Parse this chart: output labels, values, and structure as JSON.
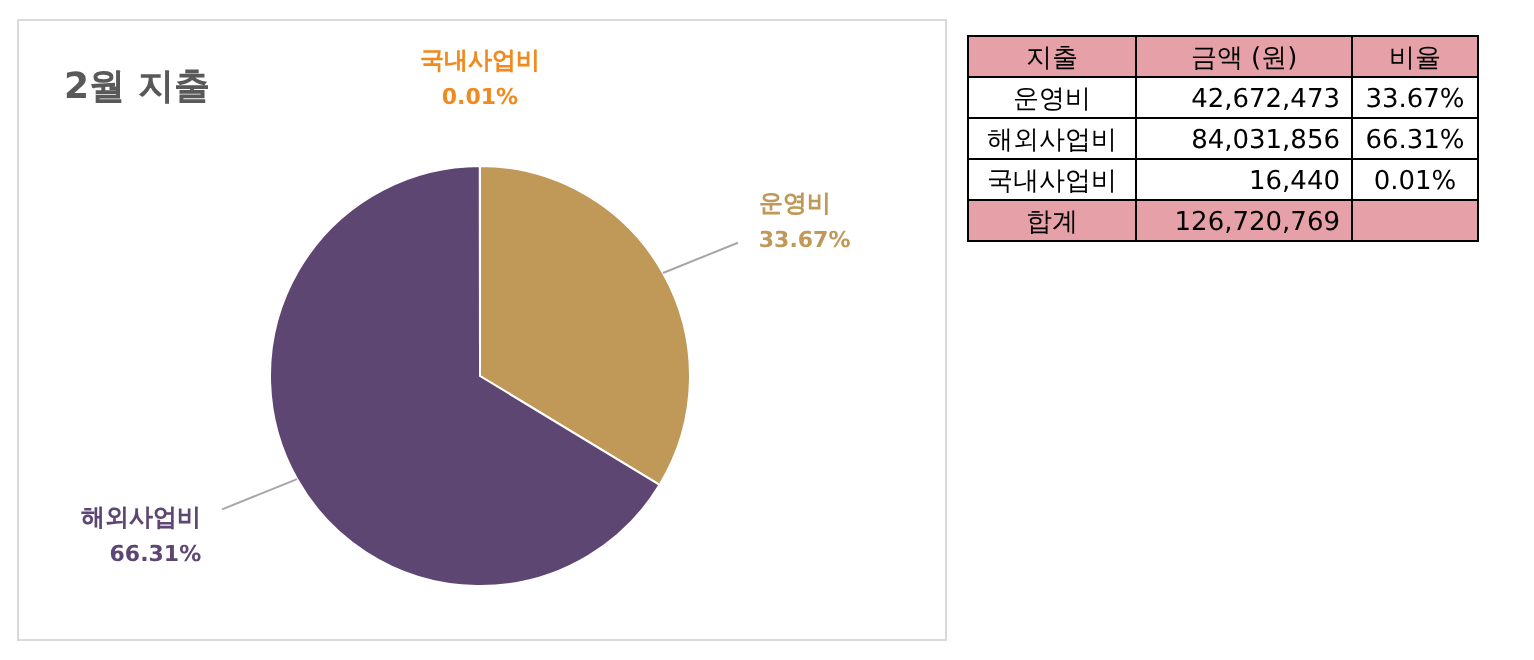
{
  "chart_data": [
    {
      "type": "pie",
      "title": "2월 지출",
      "categories": [
        "운영비",
        "해외사업비",
        "국내사업비"
      ],
      "values": [
        33.67,
        66.31,
        0.01
      ],
      "value_labels": [
        "33.67%",
        "66.31%",
        "0.01%"
      ],
      "colors": [
        "#c09858",
        "#5e4673",
        "#f08a1e"
      ]
    },
    {
      "type": "other",
      "annotations": [
        "지출",
        "금액 (원)",
        "비율",
        "운영비",
        "42,672,473",
        "33.67%",
        "해외사업비",
        "84,031,856",
        "66.31%",
        "국내사업비",
        "16,440",
        "0.01%",
        "합계",
        "126,720,769"
      ]
    }
  ]
}
